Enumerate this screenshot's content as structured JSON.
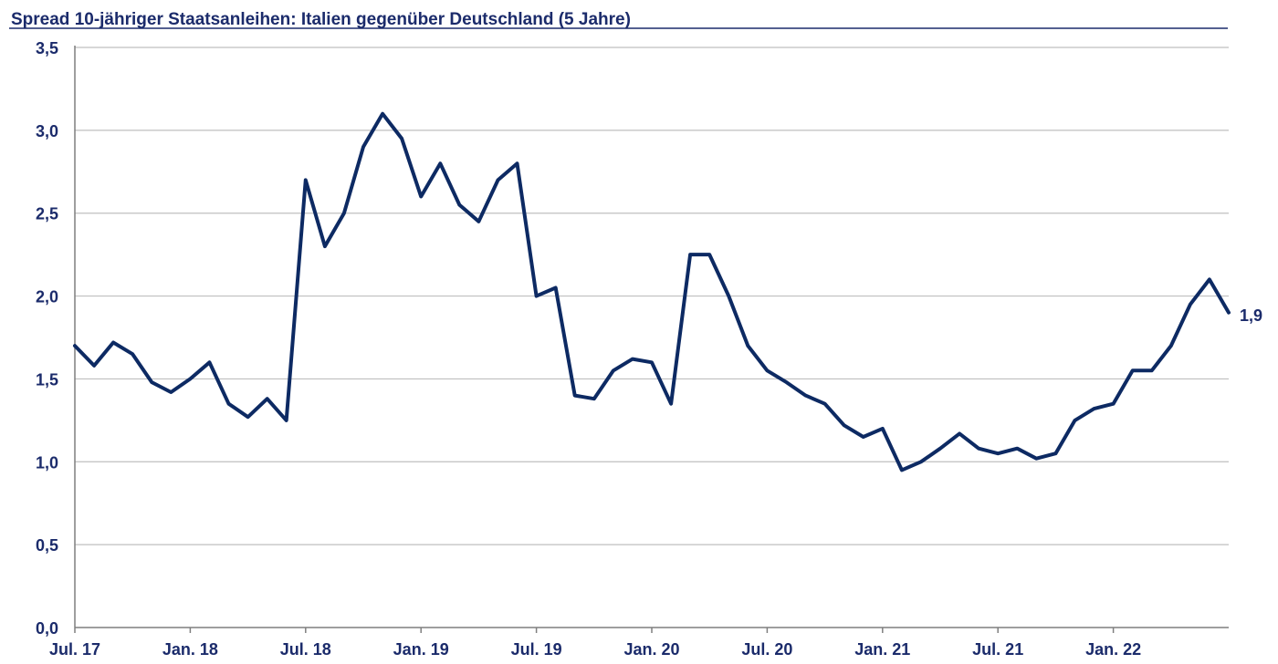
{
  "chart_data": {
    "type": "line",
    "title": "Spread 10-jähriger Staatsanleihen: Italien gegenüber Deutschland (5 Jahre)",
    "xlabel": "",
    "ylabel": "",
    "ylim": [
      0,
      3.5
    ],
    "xlim": [
      "2017-07",
      "2022-07"
    ],
    "grid": true,
    "legend": "none",
    "y_ticks": [
      "0,0",
      "0,5",
      "1,0",
      "1,5",
      "2,0",
      "2,5",
      "3,0",
      "3,5"
    ],
    "x_ticks": [
      "Jul. 17",
      "Jan. 18",
      "Jul. 18",
      "Jan. 19",
      "Jul. 19",
      "Jan. 20",
      "Jul. 20",
      "Jan. 21",
      "Jul. 21",
      "Jan. 22"
    ],
    "end_label": "1,9",
    "colors": {
      "line": "#0d2a63",
      "text": "#1b2b6b",
      "grid": "#bfbfbf",
      "axis": "#7f7f7f",
      "title_rule": "#1b2b6b"
    },
    "series": [
      {
        "x": [
          "2017-07",
          "2017-08",
          "2017-09",
          "2017-10",
          "2017-11",
          "2017-12",
          "2018-01",
          "2018-02",
          "2018-03",
          "2018-04",
          "2018-05",
          "2018-06",
          "2018-07",
          "2018-08",
          "2018-09",
          "2018-10",
          "2018-11",
          "2018-12",
          "2019-01",
          "2019-02",
          "2019-03",
          "2019-04",
          "2019-05",
          "2019-06",
          "2019-07",
          "2019-08",
          "2019-09",
          "2019-10",
          "2019-11",
          "2019-12",
          "2020-01",
          "2020-02",
          "2020-03",
          "2020-04",
          "2020-05",
          "2020-06",
          "2020-07",
          "2020-08",
          "2020-09",
          "2020-10",
          "2020-11",
          "2020-12",
          "2021-01",
          "2021-02",
          "2021-03",
          "2021-04",
          "2021-05",
          "2021-06",
          "2021-07",
          "2021-08",
          "2021-09",
          "2021-10",
          "2021-11",
          "2021-12",
          "2022-01",
          "2022-02",
          "2022-03",
          "2022-04",
          "2022-05",
          "2022-06",
          "2022-07"
        ],
        "values": [
          1.7,
          1.58,
          1.72,
          1.65,
          1.48,
          1.42,
          1.5,
          1.6,
          1.35,
          1.27,
          1.38,
          1.25,
          2.7,
          2.3,
          2.5,
          2.9,
          3.1,
          2.95,
          2.6,
          2.8,
          2.55,
          2.45,
          2.7,
          2.8,
          2.0,
          2.05,
          1.4,
          1.38,
          1.55,
          1.62,
          1.6,
          1.35,
          2.25,
          2.25,
          2.0,
          1.7,
          1.55,
          1.48,
          1.4,
          1.35,
          1.22,
          1.15,
          1.2,
          0.95,
          1.0,
          1.08,
          1.17,
          1.08,
          1.05,
          1.08,
          1.02,
          1.05,
          1.25,
          1.32,
          1.35,
          1.55,
          1.55,
          1.7,
          1.95,
          2.1,
          1.9
        ]
      }
    ]
  }
}
